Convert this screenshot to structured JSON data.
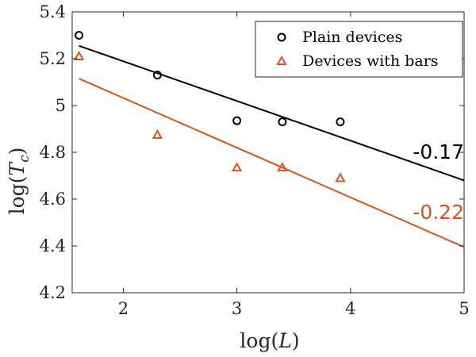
{
  "chart_data": {
    "type": "scatter",
    "xlabel": "log(L)",
    "ylabel": "log(T_c)",
    "xlim": [
      1.55,
      5.0
    ],
    "ylim": [
      4.2,
      5.4
    ],
    "x_ticks": [
      "2",
      "3",
      "4",
      "5"
    ],
    "x_tick_values": [
      2,
      3,
      4,
      5
    ],
    "y_ticks": [
      "4.2",
      "4.4",
      "4.6",
      "4.8",
      "5",
      "5.2",
      "5.4"
    ],
    "y_tick_values": [
      4.2,
      4.4,
      4.6,
      4.8,
      5.0,
      5.2,
      5.4
    ],
    "grid": false,
    "legend_position": "top-right",
    "series": [
      {
        "name": "Plain devices",
        "marker": "circle",
        "color": "#000000",
        "x": [
          1.61,
          2.3,
          3.0,
          3.4,
          3.91
        ],
        "y": [
          5.3,
          5.13,
          4.935,
          4.93,
          4.93
        ],
        "fit": {
          "x": [
            1.61,
            5.0
          ],
          "y": [
            5.255,
            4.68
          ],
          "slope_label": "-0.17"
        }
      },
      {
        "name": "Devices with bars",
        "marker": "triangle",
        "color": "#d95319",
        "x": [
          1.61,
          2.3,
          3.0,
          3.4,
          3.91
        ],
        "y": [
          5.21,
          4.875,
          4.735,
          4.735,
          4.69
        ],
        "fit": {
          "x": [
            1.61,
            5.0
          ],
          "y": [
            5.115,
            4.395
          ],
          "slope_label": "-0.22"
        }
      }
    ]
  }
}
